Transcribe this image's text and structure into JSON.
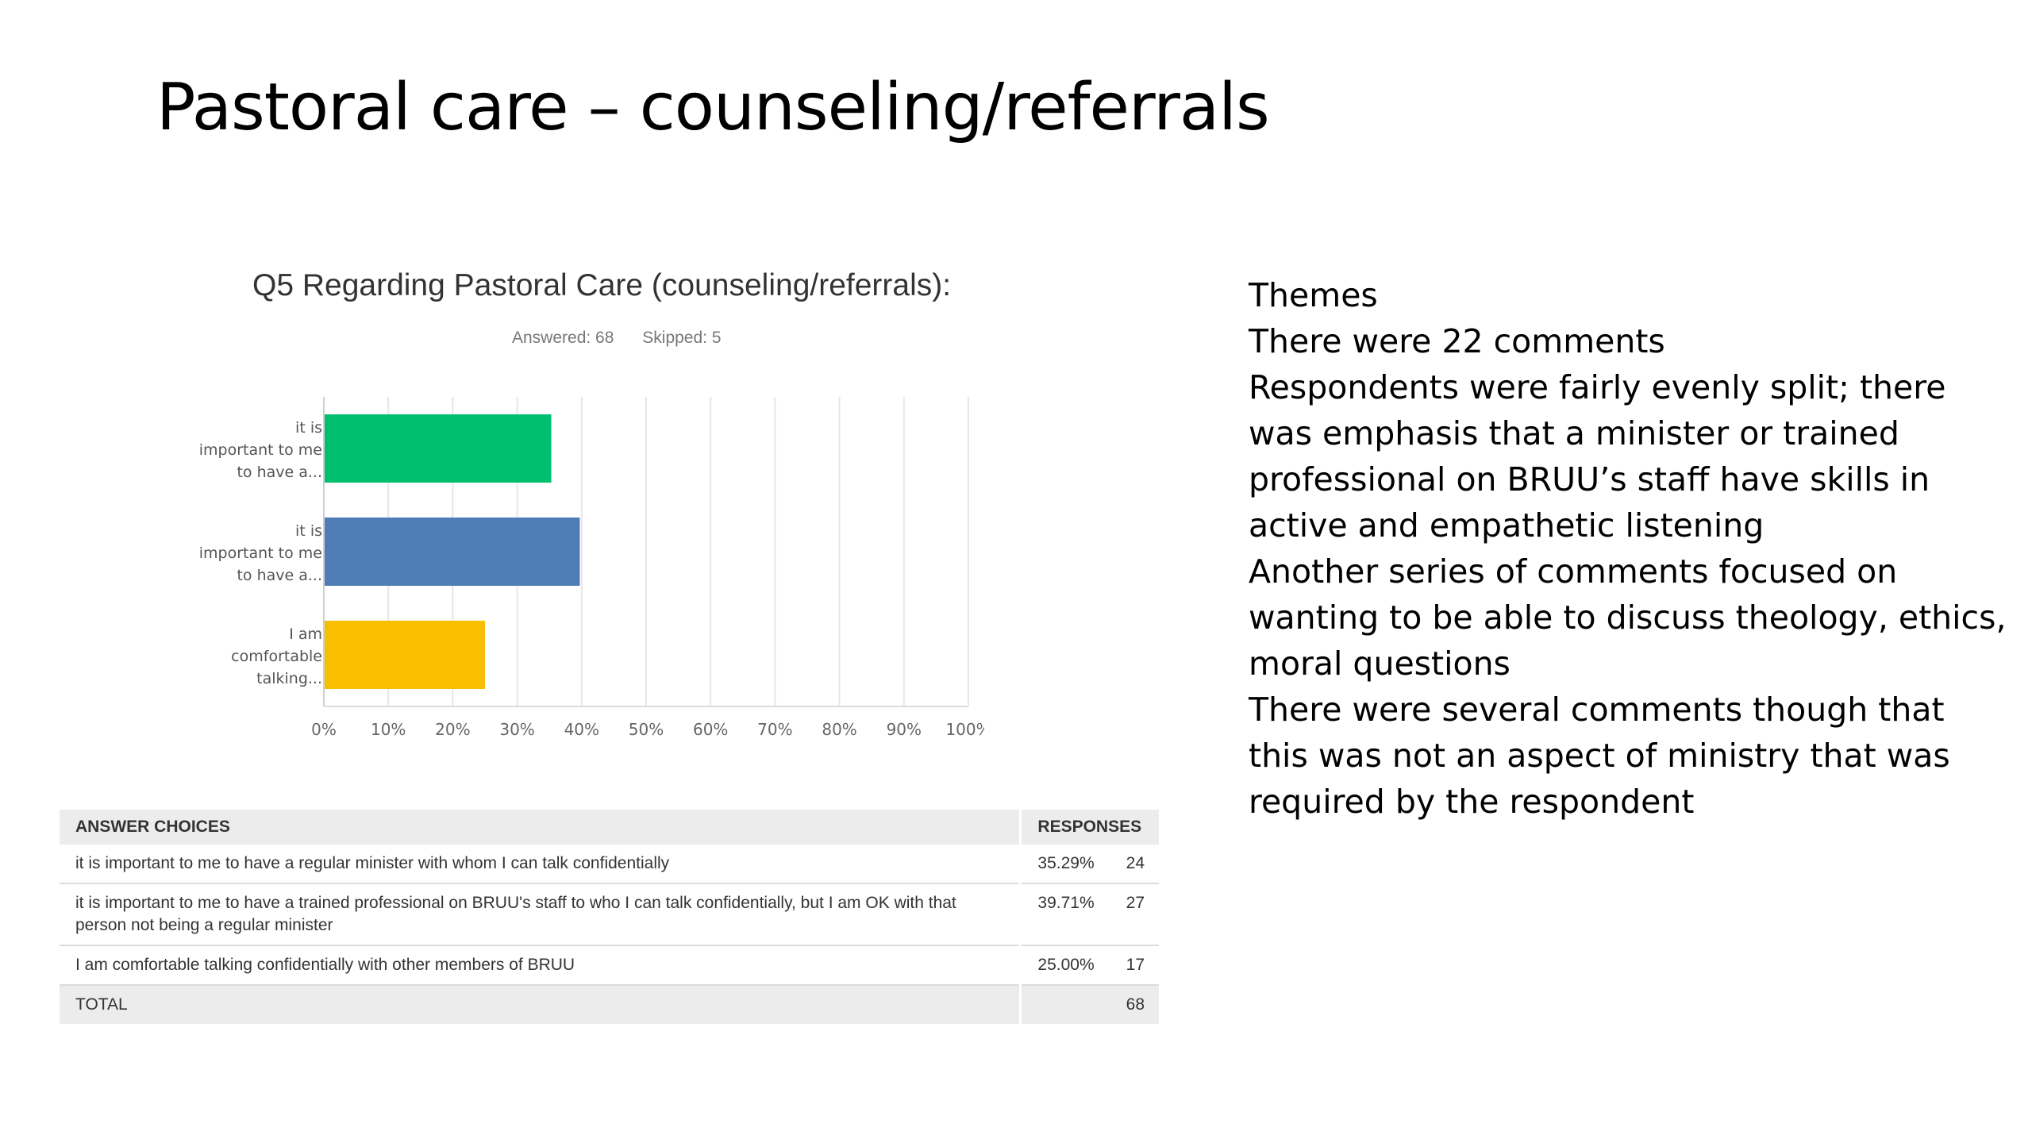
{
  "slide": {
    "title": "Pastoral care – counseling/referrals"
  },
  "survey": {
    "question_title": "Q5 Regarding Pastoral Care (counseling/referrals):",
    "answered": "Answered: 68",
    "skipped": "Skipped: 5"
  },
  "chart_data": {
    "type": "bar",
    "orientation": "horizontal",
    "categories": [
      [
        "it is",
        "important to me",
        "to have a..."
      ],
      [
        "it is",
        "important to me",
        "to have a..."
      ],
      [
        "I am",
        "comfortable",
        "talking..."
      ]
    ],
    "values": [
      35.29,
      39.71,
      25.0
    ],
    "colors": [
      "#00bf6f",
      "#507cb6",
      "#f9be00"
    ],
    "xlim": [
      0,
      100
    ],
    "xticks": [
      "0%",
      "10%",
      "20%",
      "30%",
      "40%",
      "50%",
      "60%",
      "70%",
      "80%",
      "90%",
      "100%"
    ],
    "grid": true
  },
  "table": {
    "headers": {
      "choices": "ANSWER CHOICES",
      "responses": "RESPONSES"
    },
    "rows": [
      {
        "choice": "it is important to me to have a regular minister with whom I can talk confidentially",
        "pct": "35.29%",
        "count": "24"
      },
      {
        "choice": "it is important to me to have a trained professional on BRUU's staff to who I can talk confidentially, but I am OK with that person not being a regular minister",
        "pct": "39.71%",
        "count": "27"
      },
      {
        "choice": "I am comfortable talking confidentially with other members of BRUU",
        "pct": "25.00%",
        "count": "17"
      }
    ],
    "total": {
      "label": "TOTAL",
      "count": "68"
    }
  },
  "themes": {
    "lines": [
      "Themes",
      "There were 22 comments",
      "Respondents were fairly evenly split; there was emphasis that a minister or trained professional on BRUU’s staff  have skills in active and empathetic listening",
      "Another series of comments focused on wanting to be able to discuss theology, ethics, moral questions",
      "There were several comments though that this was not an aspect of ministry that was required by the respondent"
    ]
  }
}
